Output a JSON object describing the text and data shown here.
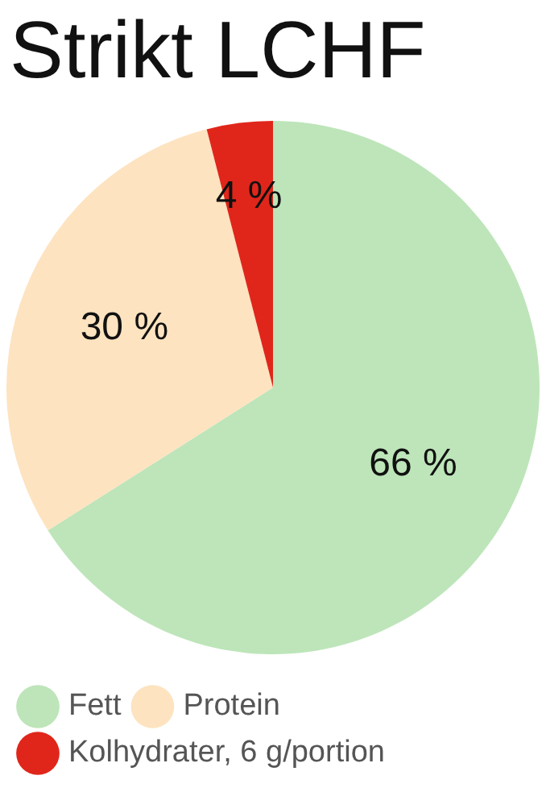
{
  "chart_data": {
    "type": "pie",
    "title": "Strikt LCHF",
    "categories": [
      "Fett",
      "Protein",
      "Kolhydrater, 6 g/portion"
    ],
    "values": [
      66,
      30,
      4
    ],
    "colors": [
      "#bde5b9",
      "#fde3c0",
      "#e0261a"
    ],
    "value_labels": [
      "66 %",
      "30 %",
      "4 %"
    ],
    "legend": "bottom"
  }
}
